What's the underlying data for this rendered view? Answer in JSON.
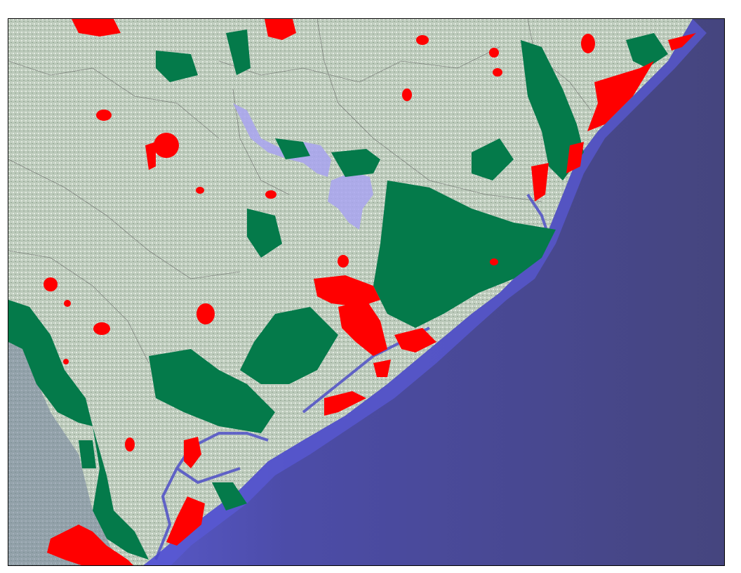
{
  "map": {
    "colors": {
      "land": "#b9c7b6",
      "land_dark": "#8fa28e",
      "ocean": "#4a4a8c",
      "ocean_shallow": "#5a5ad0",
      "green_areas": "#047a4a",
      "red_areas": "#ff0000",
      "lakes": "#a9a4f0",
      "borders": "#555555"
    }
  }
}
